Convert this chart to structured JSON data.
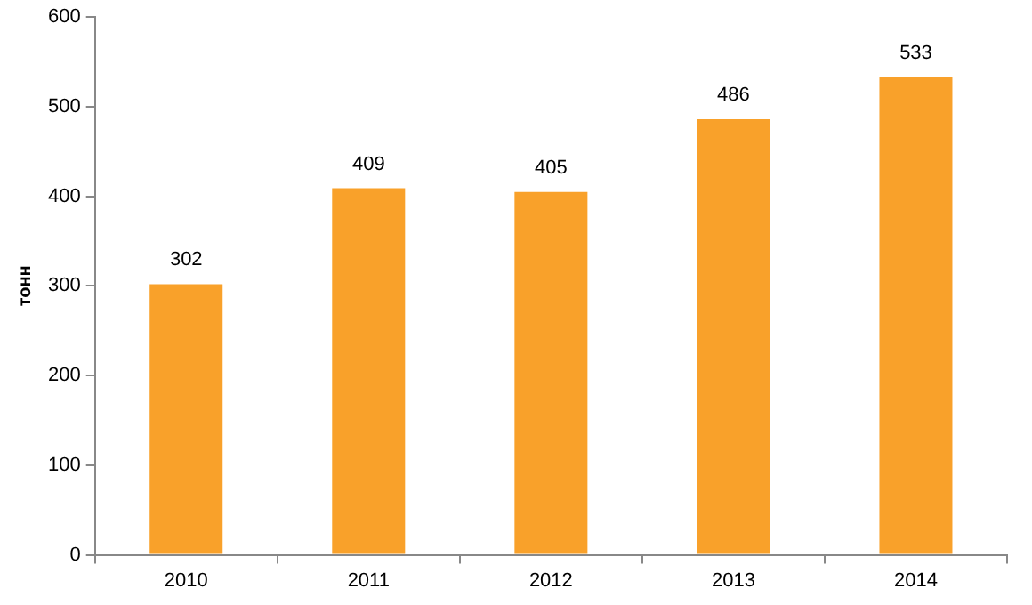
{
  "chart_data": {
    "type": "bar",
    "ylabel": "тонн",
    "categories": [
      "2010",
      "2011",
      "2012",
      "2013",
      "2014"
    ],
    "values": [
      302,
      409,
      405,
      486,
      533
    ],
    "color": "#f9a12a",
    "ylim": [
      0,
      600
    ],
    "yticks": [
      0,
      100,
      200,
      300,
      400,
      500,
      600
    ],
    "data_labels": true
  }
}
